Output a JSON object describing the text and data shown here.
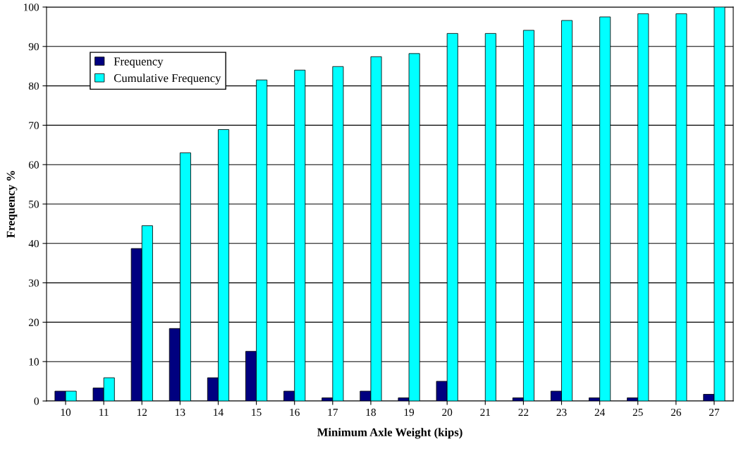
{
  "chart_data": {
    "type": "bar",
    "xlabel": "Minimum Axle Weight (kips)",
    "ylabel": "Frequency %",
    "categories": [
      "10",
      "11",
      "12",
      "13",
      "14",
      "15",
      "16",
      "17",
      "18",
      "19",
      "20",
      "21",
      "22",
      "23",
      "24",
      "25",
      "26",
      "27"
    ],
    "series": [
      {
        "name": "Frequency",
        "color": "#000080",
        "values": [
          2.5,
          3.3,
          38.7,
          18.4,
          5.9,
          12.6,
          2.5,
          0.8,
          2.5,
          0.8,
          5.0,
          0,
          0.8,
          2.5,
          0.8,
          0.8,
          0,
          1.7
        ]
      },
      {
        "name": "Cumulative Frequency",
        "color": "#00ffff",
        "values": [
          2.5,
          5.9,
          44.5,
          63.0,
          68.9,
          81.5,
          84.0,
          84.9,
          87.4,
          88.2,
          93.3,
          93.3,
          94.1,
          96.6,
          97.5,
          98.3,
          98.3,
          100
        ]
      }
    ],
    "ylim": [
      0,
      100
    ],
    "yticks": [
      0,
      10,
      20,
      30,
      40,
      50,
      60,
      70,
      80,
      90,
      100
    ],
    "grid": "y",
    "legend": "top left"
  }
}
